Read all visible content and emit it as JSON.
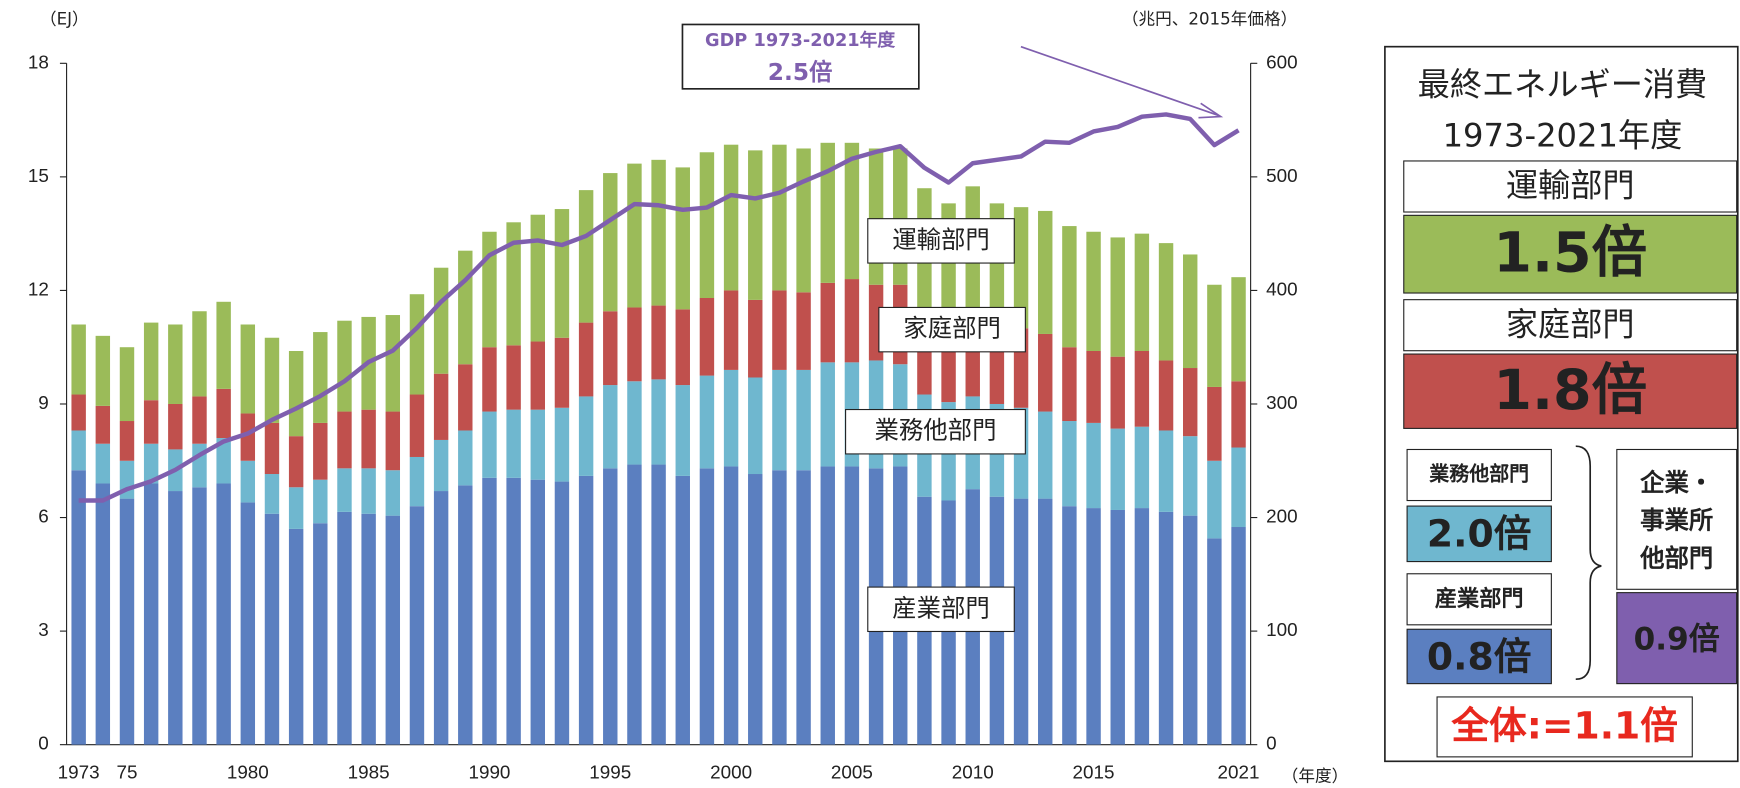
{
  "chart_data": {
    "type": "bar",
    "y_unit": "（EJ）",
    "y2_unit": "（兆円、2015年価格）",
    "x_unit": "（年度）",
    "annotation": {
      "title": "GDP 1973-2021年度",
      "value": "2.5倍"
    },
    "categories": [
      "1973",
      null,
      "75",
      null,
      null,
      null,
      null,
      "1980",
      null,
      null,
      null,
      null,
      "1985",
      null,
      null,
      null,
      null,
      "1990",
      null,
      null,
      null,
      null,
      "1995",
      null,
      null,
      null,
      null,
      "2000",
      null,
      null,
      null,
      null,
      "2005",
      null,
      null,
      null,
      null,
      "2010",
      null,
      null,
      null,
      null,
      "2015",
      null,
      null,
      null,
      null,
      null,
      "2021"
    ],
    "ylim": [
      0,
      18
    ],
    "yticks": [
      0,
      3,
      6,
      9,
      12,
      15,
      18
    ],
    "y2lim": [
      0,
      600
    ],
    "y2ticks": [
      0,
      100,
      200,
      300,
      400,
      500,
      600
    ],
    "series": [
      {
        "name": "産業部門",
        "color": "#5b7fc0",
        "values": [
          7.25,
          6.9,
          6.5,
          6.9,
          6.7,
          6.8,
          6.9,
          6.4,
          6.1,
          5.7,
          5.85,
          6.15,
          6.1,
          6.05,
          6.3,
          6.7,
          6.85,
          7.05,
          7.05,
          7.0,
          6.95,
          7.1,
          7.3,
          7.4,
          7.4,
          7.1,
          7.3,
          7.35,
          7.15,
          7.25,
          7.25,
          7.35,
          7.35,
          7.3,
          7.35,
          6.55,
          6.45,
          6.75,
          6.55,
          6.5,
          6.5,
          6.3,
          6.25,
          6.2,
          6.25,
          6.15,
          6.05,
          5.45,
          5.75
        ]
      },
      {
        "name": "業務他部門",
        "color": "#6fb7cf",
        "values": [
          1.05,
          1.05,
          1.0,
          1.05,
          1.1,
          1.15,
          1.2,
          1.1,
          1.05,
          1.1,
          1.15,
          1.15,
          1.2,
          1.2,
          1.3,
          1.35,
          1.45,
          1.75,
          1.8,
          1.85,
          1.95,
          2.1,
          2.2,
          2.2,
          2.25,
          2.4,
          2.45,
          2.55,
          2.55,
          2.65,
          2.65,
          2.75,
          2.75,
          2.85,
          2.7,
          2.7,
          2.6,
          2.45,
          2.45,
          2.4,
          2.3,
          2.25,
          2.25,
          2.15,
          2.15,
          2.15,
          2.1,
          2.05,
          2.1
        ]
      },
      {
        "name": "家庭部門",
        "color": "#c0504d",
        "values": [
          0.95,
          1.0,
          1.05,
          1.15,
          1.2,
          1.25,
          1.3,
          1.25,
          1.35,
          1.35,
          1.5,
          1.5,
          1.55,
          1.55,
          1.65,
          1.75,
          1.75,
          1.7,
          1.7,
          1.8,
          1.85,
          1.95,
          1.95,
          1.95,
          1.95,
          2.0,
          2.05,
          2.1,
          2.05,
          2.1,
          2.05,
          2.1,
          2.2,
          2.0,
          2.1,
          2.05,
          2.05,
          2.3,
          2.1,
          2.1,
          2.05,
          1.95,
          1.9,
          1.9,
          2.0,
          1.85,
          1.8,
          1.95,
          1.75
        ]
      },
      {
        "name": "運輸部門",
        "color": "#9bbb59",
        "values": [
          1.85,
          1.85,
          1.95,
          2.05,
          2.1,
          2.25,
          2.3,
          2.35,
          2.25,
          2.25,
          2.4,
          2.4,
          2.45,
          2.55,
          2.65,
          2.8,
          3.0,
          3.05,
          3.25,
          3.35,
          3.4,
          3.5,
          3.65,
          3.8,
          3.85,
          3.75,
          3.85,
          3.85,
          3.95,
          3.85,
          3.8,
          3.7,
          3.6,
          3.6,
          3.6,
          3.4,
          3.2,
          3.25,
          3.2,
          3.2,
          3.25,
          3.2,
          3.15,
          3.15,
          3.1,
          3.1,
          3.0,
          2.7,
          2.75
        ]
      },
      {
        "name": "GDP",
        "type": "line",
        "axis": "y2",
        "color": "#7f5fae",
        "values": [
          215,
          215,
          225,
          232,
          242,
          255,
          267,
          274,
          286,
          296,
          307,
          320,
          337,
          347,
          367,
          390,
          409,
          431,
          442,
          444,
          440,
          448,
          462,
          476,
          475,
          471,
          473,
          484,
          481,
          486,
          496,
          505,
          516,
          522,
          527,
          508,
          495,
          512,
          515,
          518,
          531,
          530,
          540,
          544,
          553,
          555,
          551,
          528,
          541
        ]
      }
    ]
  },
  "panel": {
    "title": "最終エネルギー消費",
    "period": "1973-2021年度",
    "transport": {
      "label": "運輸部門",
      "value": "1.5倍"
    },
    "household": {
      "label": "家庭部門",
      "value": "1.8倍"
    },
    "business": {
      "label": "業務他部門",
      "value": "2.0倍"
    },
    "industry": {
      "label": "産業部門",
      "value": "0.8倍"
    },
    "enterprise": {
      "lines": [
        "企業・",
        "事業所",
        "他部門"
      ],
      "value": "0.9倍"
    },
    "total": "全体:=1.1倍"
  }
}
